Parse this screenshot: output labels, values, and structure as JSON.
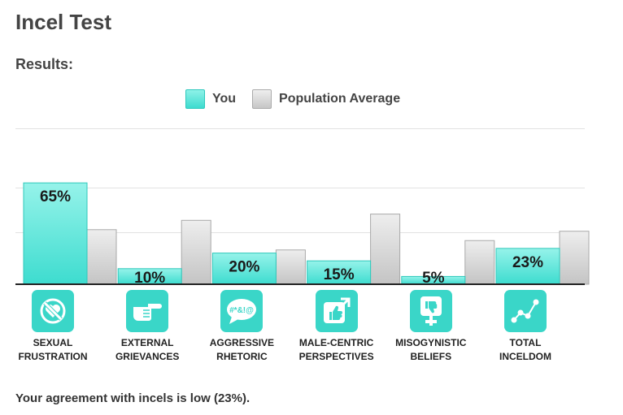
{
  "page": {
    "title": "Incel Test",
    "subtitle": "Results:",
    "summary": "Your agreement with incels is low (23%)."
  },
  "legend": {
    "you": "You",
    "average": "Population Average"
  },
  "colors": {
    "you": "#3ddccf",
    "average": "#c8c8c8",
    "icon_bg": "#3ad6c8"
  },
  "chart_data": {
    "type": "bar",
    "categories": [
      "SEXUAL FRUSTRATION",
      "EXTERNAL GRIEVANCES",
      "AGGRESSIVE RHETORIC",
      "MALE-CENTRIC PERSPECTIVES",
      "MISOGYNISTIC BELIEFS",
      "TOTAL INCELDOM"
    ],
    "category_lines": [
      [
        "SEXUAL",
        "FRUSTRATION"
      ],
      [
        "EXTERNAL",
        "GRIEVANCES"
      ],
      [
        "AGGRESSIVE",
        "RHETORIC"
      ],
      [
        "MALE-CENTRIC",
        "PERSPECTIVES"
      ],
      [
        "MISOGYNISTIC",
        "BELIEFS"
      ],
      [
        "TOTAL",
        "INCELDOM"
      ]
    ],
    "icons": [
      "no-heart-icon",
      "pointing-hand-icon",
      "swearing-speech-bubble-icon",
      "male-thumbs-up-icon",
      "female-thumbs-down-icon",
      "scatter-plot-icon"
    ],
    "series": [
      {
        "name": "You",
        "values": [
          65,
          10,
          20,
          15,
          5,
          23
        ],
        "labels": [
          "65%",
          "10%",
          "20%",
          "15%",
          "5%",
          "23%"
        ]
      },
      {
        "name": "Population Average",
        "values": [
          35,
          41,
          22,
          45,
          28,
          34
        ]
      }
    ],
    "ylim": [
      0,
      100
    ],
    "grid": true,
    "legend_position": "top-center",
    "title": "",
    "xlabel": "",
    "ylabel": ""
  }
}
